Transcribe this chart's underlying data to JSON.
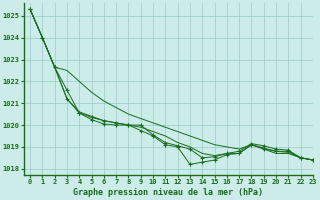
{
  "title": "Graphe pression niveau de la mer (hPa)",
  "bg_color": "#ccecea",
  "grid_color": "#99ccc8",
  "line_color": "#1a6b1a",
  "xlim": [
    -0.5,
    23
  ],
  "ylim": [
    1017.7,
    1025.6
  ],
  "yticks": [
    1018,
    1019,
    1020,
    1021,
    1022,
    1023,
    1024,
    1025
  ],
  "xticks": [
    0,
    1,
    2,
    3,
    4,
    5,
    6,
    7,
    8,
    9,
    10,
    11,
    12,
    13,
    14,
    15,
    16,
    17,
    18,
    19,
    20,
    21,
    22,
    23
  ],
  "series": [
    {
      "y": [
        1025.3,
        1024.0,
        1022.65,
        1021.6,
        1020.55,
        1020.35,
        1020.2,
        1020.1,
        1020.0,
        1020.0,
        1019.55,
        1019.2,
        1019.05,
        1018.9,
        1018.5,
        1018.55,
        1018.7,
        1018.8,
        1019.15,
        1019.05,
        1018.9,
        1018.85,
        1018.5,
        1018.4
      ],
      "marker": true
    },
    {
      "y": [
        1025.3,
        1024.0,
        1022.65,
        1021.2,
        1020.55,
        1020.25,
        1020.05,
        1020.0,
        1020.0,
        1019.75,
        1019.5,
        1019.1,
        1019.0,
        1018.2,
        1018.3,
        1018.4,
        1018.65,
        1018.7,
        1019.1,
        1018.9,
        1018.8,
        1018.8,
        1018.5,
        1018.4
      ],
      "marker": true
    },
    {
      "y": [
        1025.3,
        1024.0,
        1022.65,
        1021.2,
        1020.6,
        1020.4,
        1020.2,
        1020.1,
        1020.0,
        1019.9,
        1019.7,
        1019.5,
        1019.2,
        1019.0,
        1018.7,
        1018.6,
        1018.7,
        1018.7,
        1019.1,
        1018.9,
        1018.7,
        1018.7,
        1018.5,
        1018.4
      ],
      "marker": false
    },
    {
      "y": [
        1025.3,
        1024.0,
        1022.65,
        1022.5,
        1022.0,
        1021.5,
        1021.1,
        1020.8,
        1020.5,
        1020.3,
        1020.1,
        1019.9,
        1019.7,
        1019.5,
        1019.3,
        1019.1,
        1019.0,
        1018.9,
        1019.1,
        1018.95,
        1018.8,
        1018.75,
        1018.5,
        1018.4
      ],
      "marker": false
    }
  ]
}
